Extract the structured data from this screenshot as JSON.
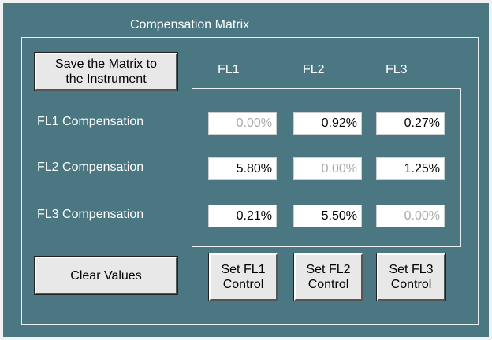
{
  "title": "Compensation Matrix",
  "save_button": {
    "lines": [
      "Save the Matrix to",
      "the  Instrument"
    ]
  },
  "columns": [
    "FL1",
    "FL2",
    "FL3"
  ],
  "rows": [
    {
      "label": "FL1 Compensation",
      "cells": [
        {
          "text": "0.00%",
          "disabled": true
        },
        {
          "text": "0.92%",
          "disabled": false
        },
        {
          "text": "0.27%",
          "disabled": false
        }
      ]
    },
    {
      "label": "FL2 Compensation",
      "cells": [
        {
          "text": "5.80%",
          "disabled": false
        },
        {
          "text": "0.00%",
          "disabled": true
        },
        {
          "text": "1.25%",
          "disabled": false
        }
      ]
    },
    {
      "label": "FL3 Compensation",
      "cells": [
        {
          "text": "0.21%",
          "disabled": false
        },
        {
          "text": "5.50%",
          "disabled": false
        },
        {
          "text": "0.00%",
          "disabled": true
        }
      ]
    }
  ],
  "clear_button": "Clear Values",
  "set_buttons": [
    [
      "Set FL1",
      "Control"
    ],
    [
      "Set FL2",
      "Control"
    ],
    [
      "Set FL3",
      "Control"
    ]
  ]
}
